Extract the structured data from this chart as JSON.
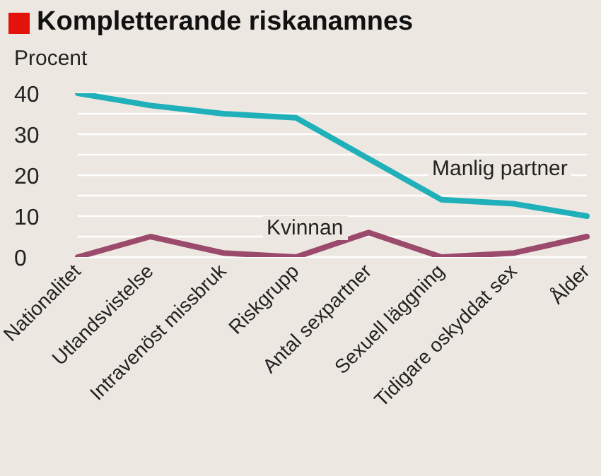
{
  "chart_data": {
    "type": "line",
    "title": "Kompletterande riskanamnes",
    "ylabel": "Procent",
    "categories": [
      "Nationalitet",
      "Utlandsvistelse",
      "Intravenöst missbruk",
      "Riskgrupp",
      "Antal sexpartner",
      "Sexuell läggning",
      "Tidigare oskyddat sex",
      "Ålder"
    ],
    "series": [
      {
        "name": "Manlig partner",
        "color": "#1fb0ba",
        "values": [
          40,
          37,
          35,
          34,
          24,
          14,
          13,
          10
        ]
      },
      {
        "name": "Kvinnan",
        "color": "#9c4a6c",
        "values": [
          0,
          5,
          1,
          0,
          6,
          0,
          1,
          5
        ]
      }
    ],
    "ylim": [
      0,
      40
    ],
    "yticks": [
      0,
      {
        "value": 5,
        "label": null
      },
      10,
      {
        "value": 15,
        "label": null
      },
      20,
      {
        "value": 25,
        "label": null
      },
      30,
      {
        "value": 35,
        "label": null
      },
      40
    ],
    "grid": "y",
    "legend": false,
    "marker": "none",
    "line_style": "solid"
  }
}
